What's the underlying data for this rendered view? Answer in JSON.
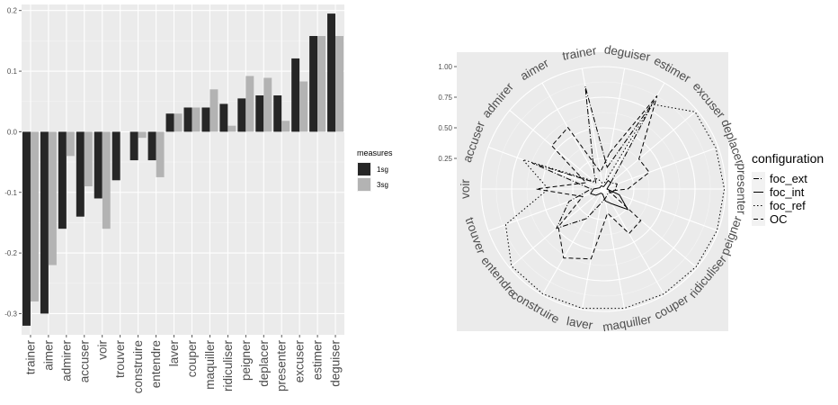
{
  "chart_data": [
    {
      "type": "bar",
      "categories": [
        "trainer",
        "aimer",
        "admirer",
        "accuser",
        "voir",
        "trouver",
        "construire",
        "entendre",
        "laver",
        "couper",
        "maquiller",
        "ridiculiser",
        "peigner",
        "deplacer",
        "presenter",
        "excuser",
        "estimer",
        "deguiser"
      ],
      "series": [
        {
          "name": "1sg",
          "color": "#262626",
          "values": [
            -0.32,
            -0.3,
            -0.16,
            -0.14,
            -0.11,
            -0.08,
            -0.047,
            -0.047,
            0.03,
            0.04,
            0.04,
            0.046,
            0.055,
            0.06,
            0.06,
            0.121,
            0.158,
            0.195
          ]
        },
        {
          "name": "3sg",
          "color": "#b3b3b3",
          "values": [
            -0.28,
            -0.22,
            -0.04,
            -0.09,
            -0.16,
            0.0,
            -0.01,
            -0.075,
            0.03,
            0.04,
            0.07,
            0.01,
            0.092,
            0.089,
            0.018,
            0.083,
            0.158,
            0.158
          ]
        }
      ],
      "ylim": [
        -0.335,
        0.21
      ],
      "yticks": [
        -0.3,
        -0.2,
        -0.1,
        0.0,
        0.1,
        0.2
      ],
      "ytick_labels": [
        "-0.3",
        "-0.2",
        "-0.1",
        "0.0",
        "0.1",
        "0.2"
      ],
      "legend": {
        "title": "measures",
        "placement": "right"
      },
      "grid": true
    },
    {
      "type": "radar",
      "categories": [
        "deguiser",
        "estimer",
        "excuser",
        "deplacer",
        "presenter",
        "peigner",
        "ridiculiser",
        "couper",
        "maquiller",
        "laver",
        "construire",
        "entendre",
        "trouver",
        "voir",
        "accuser",
        "admirer",
        "aimer",
        "trainer"
      ],
      "rticks": [
        0.25,
        0.5,
        0.75,
        1.0
      ],
      "rtick_labels": [
        "0.25",
        "0.50",
        "0.75",
        "1.00"
      ],
      "series": [
        {
          "name": "foc_ext",
          "dash": "6 2 1 2",
          "values": [
            0.18,
            0.83,
            0.08,
            0.12,
            0.1,
            0.08,
            0.05,
            0.06,
            0.08,
            0.12,
            0.28,
            0.5,
            0.3,
            0.1,
            0.62,
            0.08,
            0.15,
            0.85
          ]
        },
        {
          "name": "foc_int",
          "dash": "",
          "values": [
            0.02,
            0.08,
            0.08,
            0.04,
            0.03,
            0.14,
            0.26,
            0.14,
            0.1,
            0.04,
            0.04,
            0.08,
            0.11,
            0.08,
            0.03,
            0.03,
            0.03,
            0.02
          ]
        },
        {
          "name": "foc_ref",
          "dash": "1.5 2.5",
          "values": [
            0.05,
            0.8,
            0.98,
            0.98,
            0.99,
            0.99,
            0.99,
            0.99,
            0.99,
            0.99,
            0.99,
            0.98,
            0.85,
            0.45,
            0.7,
            0.1,
            0.1,
            0.05
          ]
        },
        {
          "name": "OC",
          "dash": "5 3",
          "values": [
            0.3,
            0.88,
            0.38,
            0.4,
            0.2,
            0.05,
            0.4,
            0.42,
            0.2,
            0.58,
            0.65,
            0.48,
            0.18,
            0.55,
            0.15,
            0.55,
            0.58,
            0.14
          ]
        }
      ],
      "legend": {
        "title": "configuration",
        "placement": "right"
      },
      "grid": true
    }
  ]
}
